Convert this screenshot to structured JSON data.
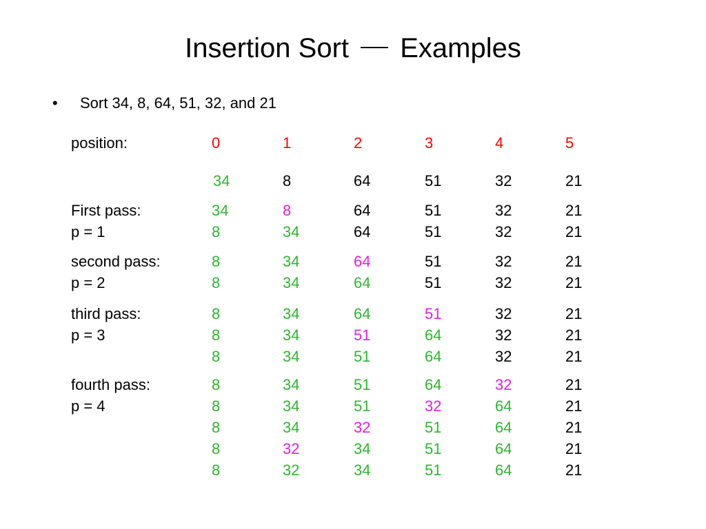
{
  "title": {
    "left": "Insertion Sort",
    "right": "Examples"
  },
  "bullet": {
    "symbol": "•",
    "text": "Sort 34, 8, 64, 51, 32, and 21"
  },
  "colors": {
    "black": "#000000",
    "green": "#2db52d",
    "red": "#ff0000",
    "magenta": "#e020e0"
  },
  "table": {
    "position_label": "position:",
    "positions": [
      "0",
      "1",
      "2",
      "3",
      "4",
      "5"
    ],
    "initial": [
      {
        "v": "34",
        "c": "green"
      },
      {
        "v": "8",
        "c": "black"
      },
      {
        "v": "64",
        "c": "black"
      },
      {
        "v": "51",
        "c": "black"
      },
      {
        "v": "32",
        "c": "black"
      },
      {
        "v": "21",
        "c": "black"
      }
    ],
    "groups": [
      {
        "rows": [
          {
            "label": "First pass:",
            "cells": [
              {
                "v": "34",
                "c": "green"
              },
              {
                "v": "8",
                "c": "magenta"
              },
              {
                "v": "64",
                "c": "black"
              },
              {
                "v": "51",
                "c": "black"
              },
              {
                "v": "32",
                "c": "black"
              },
              {
                "v": "21",
                "c": "black"
              }
            ]
          },
          {
            "label": "p = 1",
            "cells": [
              {
                "v": "8",
                "c": "green"
              },
              {
                "v": "34",
                "c": "green"
              },
              {
                "v": "64",
                "c": "black"
              },
              {
                "v": "51",
                "c": "black"
              },
              {
                "v": "32",
                "c": "black"
              },
              {
                "v": "21",
                "c": "black"
              }
            ]
          }
        ]
      },
      {
        "rows": [
          {
            "label": "second pass:",
            "cells": [
              {
                "v": "8",
                "c": "green"
              },
              {
                "v": "34",
                "c": "green"
              },
              {
                "v": "64",
                "c": "magenta"
              },
              {
                "v": "51",
                "c": "black"
              },
              {
                "v": "32",
                "c": "black"
              },
              {
                "v": "21",
                "c": "black"
              }
            ]
          },
          {
            "label": "p = 2",
            "cells": [
              {
                "v": "8",
                "c": "green"
              },
              {
                "v": "34",
                "c": "green"
              },
              {
                "v": "64",
                "c": "green"
              },
              {
                "v": "51",
                "c": "black"
              },
              {
                "v": "32",
                "c": "black"
              },
              {
                "v": "21",
                "c": "black"
              }
            ]
          }
        ]
      },
      {
        "rows": [
          {
            "label": "third pass:",
            "cells": [
              {
                "v": "8",
                "c": "green"
              },
              {
                "v": "34",
                "c": "green"
              },
              {
                "v": "64",
                "c": "green"
              },
              {
                "v": "51",
                "c": "magenta"
              },
              {
                "v": "32",
                "c": "black"
              },
              {
                "v": "21",
                "c": "black"
              }
            ]
          },
          {
            "label": "p = 3",
            "cells": [
              {
                "v": "8",
                "c": "green"
              },
              {
                "v": "34",
                "c": "green"
              },
              {
                "v": "51",
                "c": "magenta"
              },
              {
                "v": "64",
                "c": "green"
              },
              {
                "v": "32",
                "c": "black"
              },
              {
                "v": "21",
                "c": "black"
              }
            ]
          },
          {
            "label": "",
            "cells": [
              {
                "v": "8",
                "c": "green"
              },
              {
                "v": "34",
                "c": "green"
              },
              {
                "v": "51",
                "c": "green"
              },
              {
                "v": "64",
                "c": "green"
              },
              {
                "v": "32",
                "c": "black"
              },
              {
                "v": "21",
                "c": "black"
              }
            ]
          }
        ]
      },
      {
        "rows": [
          {
            "label": "fourth pass:",
            "cells": [
              {
                "v": "8",
                "c": "green"
              },
              {
                "v": "34",
                "c": "green"
              },
              {
                "v": "51",
                "c": "green"
              },
              {
                "v": "64",
                "c": "green"
              },
              {
                "v": "32",
                "c": "magenta"
              },
              {
                "v": "21",
                "c": "black"
              }
            ]
          },
          {
            "label": "p = 4",
            "cells": [
              {
                "v": "8",
                "c": "green"
              },
              {
                "v": "34",
                "c": "green"
              },
              {
                "v": "51",
                "c": "green"
              },
              {
                "v": "32",
                "c": "magenta"
              },
              {
                "v": "64",
                "c": "green"
              },
              {
                "v": "21",
                "c": "black"
              }
            ]
          },
          {
            "label": "",
            "cells": [
              {
                "v": "8",
                "c": "green"
              },
              {
                "v": "34",
                "c": "green"
              },
              {
                "v": "32",
                "c": "magenta"
              },
              {
                "v": "51",
                "c": "green"
              },
              {
                "v": "64",
                "c": "green"
              },
              {
                "v": "21",
                "c": "black"
              }
            ]
          },
          {
            "label": "",
            "cells": [
              {
                "v": "8",
                "c": "green"
              },
              {
                "v": "32",
                "c": "magenta"
              },
              {
                "v": "34",
                "c": "green"
              },
              {
                "v": "51",
                "c": "green"
              },
              {
                "v": "64",
                "c": "green"
              },
              {
                "v": "21",
                "c": "black"
              }
            ]
          },
          {
            "label": "",
            "cells": [
              {
                "v": "8",
                "c": "green"
              },
              {
                "v": "32",
                "c": "green"
              },
              {
                "v": "34",
                "c": "green"
              },
              {
                "v": "51",
                "c": "green"
              },
              {
                "v": "64",
                "c": "green"
              },
              {
                "v": "21",
                "c": "black"
              }
            ]
          }
        ]
      }
    ]
  }
}
